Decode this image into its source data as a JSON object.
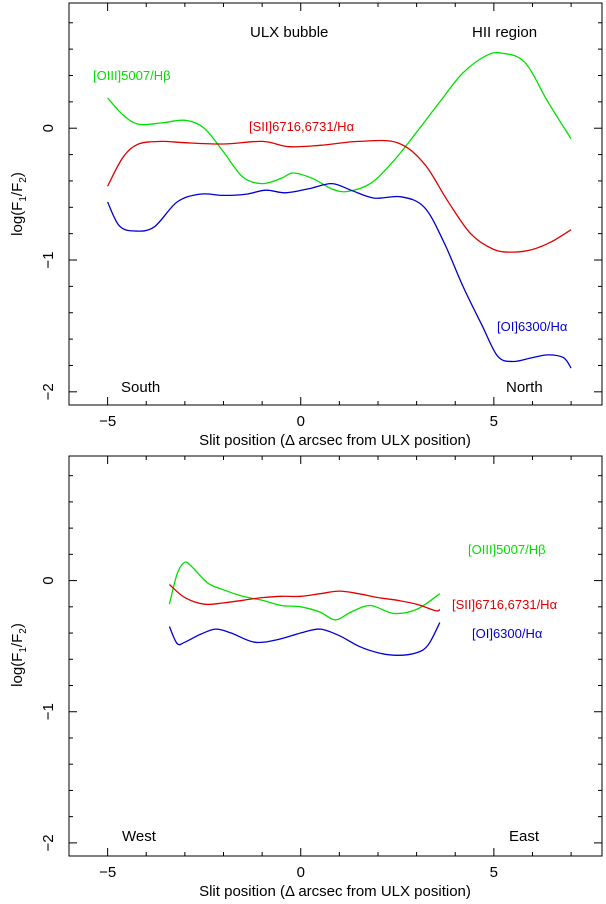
{
  "chart_data": [
    {
      "type": "line",
      "xlabel": "Slit position (Δ arcsec from ULX position)",
      "ylabel": {
        "base": "log(F",
        "sub1": "1",
        "mid": "/F",
        "sub2": "2",
        "end": ")"
      },
      "xlim": [
        -6,
        7.8
      ],
      "ylim": [
        -2.1,
        0.95
      ],
      "xticks": [
        -5,
        0,
        5
      ],
      "xtick_labels": [
        "−5",
        "0",
        "5"
      ],
      "yticks": [
        -2,
        -1,
        0
      ],
      "ytick_labels": [
        "−2",
        "−1",
        "0"
      ],
      "annotations": {
        "top_left": "South",
        "top_right": "North",
        "top_center": "ULX bubble",
        "top_far_right": "HII region"
      },
      "series": [
        {
          "name": "[OIII]5007/Hβ",
          "color": "#00e000",
          "x": [
            -5,
            -4.6,
            -4.2,
            -3.6,
            -3.0,
            -2.5,
            -2.0,
            -1.5,
            -1.0,
            -0.5,
            -0.2,
            0.3,
            0.8,
            1.2,
            1.8,
            2.4,
            3.0,
            3.6,
            4.2,
            4.8,
            5.2,
            5.8,
            6.4,
            7.0
          ],
          "y": [
            0.23,
            0.1,
            0.03,
            0.04,
            0.06,
            0.0,
            -0.18,
            -0.37,
            -0.42,
            -0.38,
            -0.34,
            -0.38,
            -0.46,
            -0.48,
            -0.42,
            -0.25,
            -0.03,
            0.2,
            0.42,
            0.55,
            0.57,
            0.5,
            0.2,
            -0.08
          ]
        },
        {
          "name": "[SII]6716,6731/Hα",
          "color": "#e00000",
          "x": [
            -5,
            -4.6,
            -4.2,
            -3.6,
            -3.0,
            -2.0,
            -1.0,
            -0.3,
            0.5,
            1.5,
            2.5,
            3.2,
            3.8,
            4.4,
            5.0,
            5.5,
            6.0,
            6.5,
            7.0
          ],
          "y": [
            -0.44,
            -0.22,
            -0.12,
            -0.1,
            -0.11,
            -0.12,
            -0.1,
            -0.14,
            -0.13,
            -0.1,
            -0.11,
            -0.27,
            -0.55,
            -0.8,
            -0.92,
            -0.94,
            -0.92,
            -0.86,
            -0.77
          ]
        },
        {
          "name": "[OI]6300/Hα",
          "color": "#0000d0",
          "x": [
            -5,
            -4.7,
            -4.3,
            -3.8,
            -3.2,
            -2.6,
            -2.0,
            -1.4,
            -0.9,
            -0.4,
            0.2,
            0.8,
            1.3,
            1.9,
            2.6,
            3.2,
            3.7,
            4.2,
            4.7,
            5.1,
            5.5,
            6.0,
            6.4,
            6.8,
            7.0
          ],
          "y": [
            -0.56,
            -0.74,
            -0.78,
            -0.75,
            -0.56,
            -0.5,
            -0.51,
            -0.5,
            -0.47,
            -0.49,
            -0.46,
            -0.42,
            -0.47,
            -0.53,
            -0.52,
            -0.6,
            -0.86,
            -1.2,
            -1.5,
            -1.73,
            -1.77,
            -1.74,
            -1.72,
            -1.74,
            -1.82
          ]
        }
      ],
      "series_labels": [
        "[OIII]5007/Hβ",
        "[SII]6716,6731/Hα",
        "[OI]6300/Hα"
      ]
    },
    {
      "type": "line",
      "xlabel": "Slit position (Δ arcsec from ULX position)",
      "ylabel": {
        "base": "log(F",
        "sub1": "1",
        "mid": "/F",
        "sub2": "2",
        "end": ")"
      },
      "xlim": [
        -6,
        7.8
      ],
      "ylim": [
        -2.1,
        0.95
      ],
      "xticks": [
        -5,
        0,
        5
      ],
      "xtick_labels": [
        "−5",
        "0",
        "5"
      ],
      "yticks": [
        -2,
        -1,
        0
      ],
      "ytick_labels": [
        "−2",
        "−1",
        "0"
      ],
      "annotations": {
        "top_left": "West",
        "top_right": "East"
      },
      "series": [
        {
          "name": "[OIII]5007/Hβ",
          "color": "#00e000",
          "x": [
            -3.4,
            -3.2,
            -3.0,
            -2.8,
            -2.4,
            -2.0,
            -1.5,
            -1.0,
            -0.5,
            0.0,
            0.5,
            0.9,
            1.3,
            1.8,
            2.4,
            3.0,
            3.6
          ],
          "y": [
            -0.18,
            0.05,
            0.14,
            0.1,
            -0.02,
            -0.07,
            -0.12,
            -0.15,
            -0.19,
            -0.2,
            -0.24,
            -0.3,
            -0.24,
            -0.19,
            -0.25,
            -0.22,
            -0.1
          ]
        },
        {
          "name": "[SII]6716,6731/Hα",
          "color": "#e00000",
          "x": [
            -3.4,
            -3.0,
            -2.5,
            -2.0,
            -1.5,
            -1.0,
            -0.5,
            0.0,
            0.5,
            1.0,
            1.5,
            2.0,
            2.5,
            3.0,
            3.5,
            3.6
          ],
          "y": [
            -0.03,
            -0.13,
            -0.18,
            -0.17,
            -0.15,
            -0.13,
            -0.12,
            -0.12,
            -0.1,
            -0.08,
            -0.1,
            -0.13,
            -0.15,
            -0.18,
            -0.23,
            -0.22
          ]
        },
        {
          "name": "[OI]6300/Hα",
          "color": "#0000d0",
          "x": [
            -3.4,
            -3.2,
            -3.0,
            -2.6,
            -2.2,
            -1.8,
            -1.2,
            -0.6,
            0.0,
            0.5,
            1.0,
            1.5,
            2.0,
            2.5,
            3.0,
            3.3,
            3.6
          ],
          "y": [
            -0.35,
            -0.48,
            -0.47,
            -0.41,
            -0.37,
            -0.4,
            -0.47,
            -0.45,
            -0.4,
            -0.37,
            -0.42,
            -0.5,
            -0.55,
            -0.57,
            -0.55,
            -0.49,
            -0.32
          ]
        }
      ],
      "series_labels": [
        "[OIII]5007/Hβ",
        "[SII]6716,6731/Hα",
        "[OI]6300/Hα"
      ]
    }
  ]
}
